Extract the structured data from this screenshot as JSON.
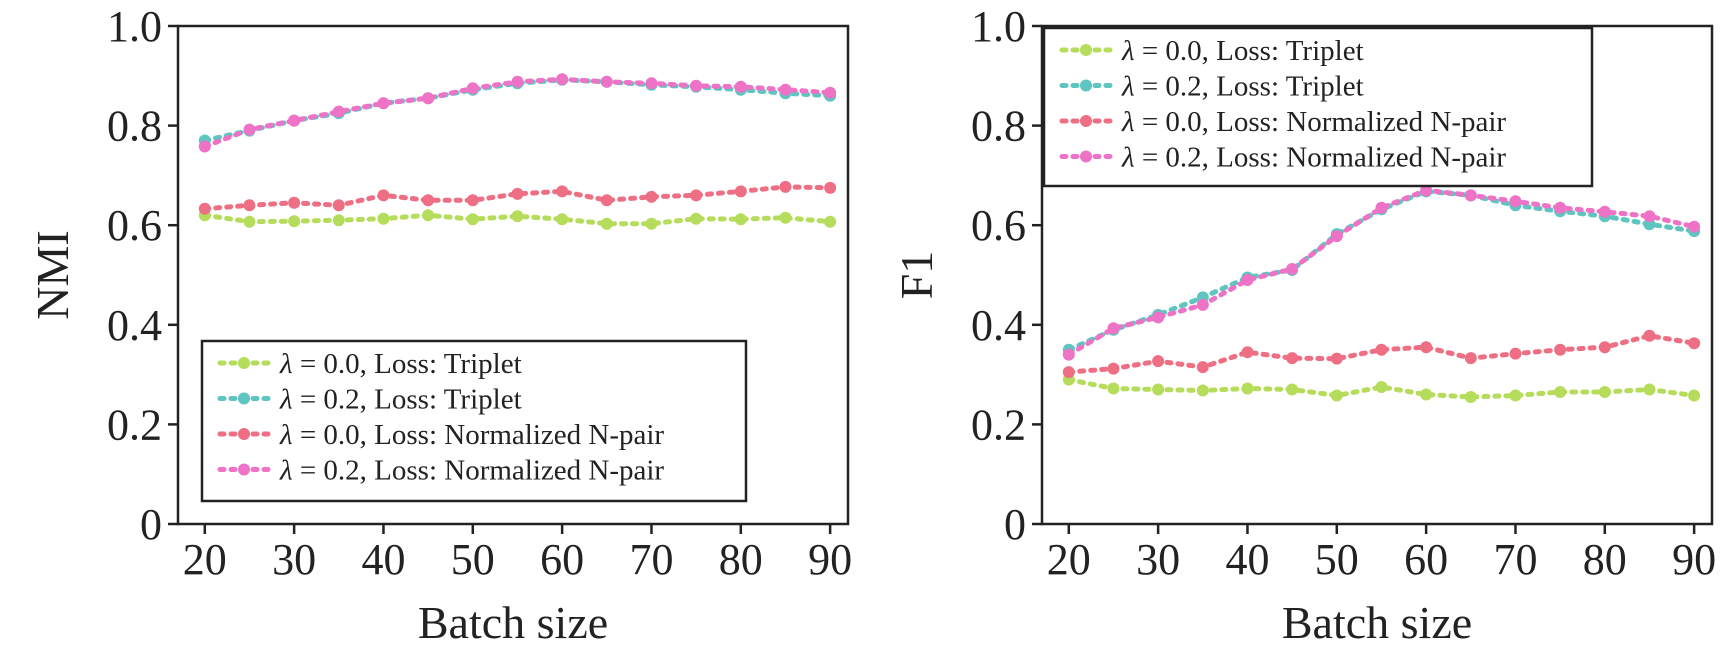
{
  "chart_data": [
    {
      "type": "line",
      "xlabel": "Batch size",
      "ylabel": "NMI",
      "ylim": [
        0,
        1.0
      ],
      "xlim": [
        17,
        92
      ],
      "x_ticks": [
        20,
        30,
        40,
        50,
        60,
        70,
        80,
        90
      ],
      "y_ticks": [
        0,
        0.2,
        0.4,
        0.6,
        0.8,
        1.0
      ],
      "x_tick_labels": [
        "20",
        "30",
        "40",
        "50",
        "60",
        "70",
        "80",
        "90"
      ],
      "y_tick_labels": [
        "0",
        "0.2",
        "0.4",
        "0.6",
        "0.8",
        "1.0"
      ],
      "legend_position": "lower-left",
      "x": [
        20,
        25,
        30,
        35,
        40,
        45,
        50,
        55,
        60,
        65,
        70,
        75,
        80,
        85,
        90
      ],
      "series": [
        {
          "name": "λ = 0.0, Loss: Triplet",
          "color": "#b5dc5a",
          "values": [
            0.62,
            0.607,
            0.608,
            0.61,
            0.613,
            0.62,
            0.612,
            0.618,
            0.612,
            0.603,
            0.603,
            0.613,
            0.612,
            0.615,
            0.607
          ]
        },
        {
          "name": "λ = 0.2, Loss: Triplet",
          "color": "#5ec5c0",
          "values": [
            0.77,
            0.79,
            0.81,
            0.825,
            0.845,
            0.855,
            0.872,
            0.885,
            0.892,
            0.888,
            0.882,
            0.878,
            0.872,
            0.865,
            0.86
          ]
        },
        {
          "name": "λ = 0.0, Loss: Normalized N-pair",
          "color": "#ee6f84",
          "values": [
            0.633,
            0.64,
            0.645,
            0.64,
            0.66,
            0.65,
            0.65,
            0.663,
            0.668,
            0.65,
            0.657,
            0.66,
            0.668,
            0.677,
            0.675
          ]
        },
        {
          "name": "λ = 0.2, Loss: Normalized N-pair",
          "color": "#ee73c7",
          "values": [
            0.758,
            0.792,
            0.81,
            0.828,
            0.845,
            0.855,
            0.875,
            0.888,
            0.893,
            0.888,
            0.885,
            0.88,
            0.878,
            0.872,
            0.866
          ]
        }
      ]
    },
    {
      "type": "line",
      "xlabel": "Batch size",
      "ylabel": "F1",
      "ylim": [
        0,
        1.0
      ],
      "xlim": [
        17,
        92
      ],
      "x_ticks": [
        20,
        30,
        40,
        50,
        60,
        70,
        80,
        90
      ],
      "y_ticks": [
        0,
        0.2,
        0.4,
        0.6,
        0.8,
        1.0
      ],
      "x_tick_labels": [
        "20",
        "30",
        "40",
        "50",
        "60",
        "70",
        "80",
        "90"
      ],
      "y_tick_labels": [
        "0",
        "0.2",
        "0.4",
        "0.6",
        "0.8",
        "1.0"
      ],
      "legend_position": "upper-left",
      "x": [
        20,
        25,
        30,
        35,
        40,
        45,
        50,
        55,
        60,
        65,
        70,
        75,
        80,
        85,
        90
      ],
      "series": [
        {
          "name": "λ = 0.0, Loss: Triplet",
          "color": "#b5dc5a",
          "values": [
            0.29,
            0.272,
            0.27,
            0.268,
            0.272,
            0.27,
            0.258,
            0.275,
            0.26,
            0.255,
            0.258,
            0.265,
            0.265,
            0.27,
            0.258
          ]
        },
        {
          "name": "λ = 0.2, Loss: Triplet",
          "color": "#5ec5c0",
          "values": [
            0.35,
            0.39,
            0.42,
            0.455,
            0.495,
            0.51,
            0.582,
            0.632,
            0.668,
            0.66,
            0.64,
            0.628,
            0.618,
            0.602,
            0.588
          ]
        },
        {
          "name": "λ = 0.0, Loss: Normalized N-pair",
          "color": "#ee6f84",
          "values": [
            0.305,
            0.312,
            0.327,
            0.315,
            0.345,
            0.333,
            0.332,
            0.35,
            0.355,
            0.333,
            0.342,
            0.35,
            0.355,
            0.378,
            0.363
          ]
        },
        {
          "name": "λ = 0.2, Loss: Normalized N-pair",
          "color": "#ee73c7",
          "values": [
            0.34,
            0.393,
            0.415,
            0.44,
            0.49,
            0.512,
            0.578,
            0.635,
            0.67,
            0.66,
            0.648,
            0.635,
            0.627,
            0.618,
            0.597
          ]
        }
      ]
    }
  ]
}
